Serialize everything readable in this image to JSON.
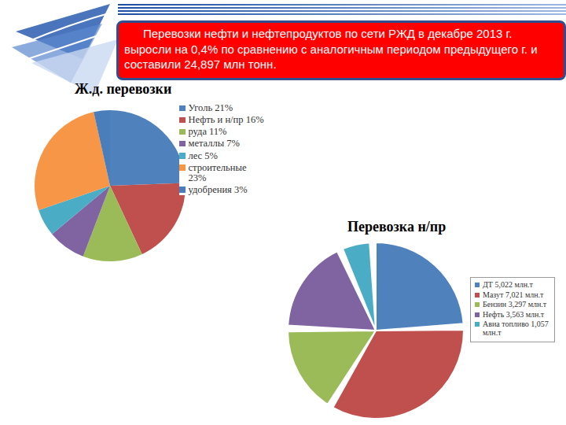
{
  "header": "Перевозки нефти и нефтепродуктов по сети РЖД в декабре 2013 г. выросли на 0,4% по сравнению с аналогичным периодом предыдущего г. и составили 24,897 млн тонн.",
  "chart_data": [
    {
      "type": "pie",
      "title": "Ж.д. перевозки",
      "categories": [
        "Уголь  21%",
        "Нефть и н/пр 16%",
        "руда 11%",
        "металлы 7%",
        "лес 5%",
        "строительные 23%",
        "удобрения 3%"
      ],
      "values": [
        21,
        16,
        11,
        7,
        5,
        23,
        3
      ],
      "colors": [
        "#4f81bd",
        "#c0504d",
        "#9bbb59",
        "#8064a2",
        "#4bacc6",
        "#f79646",
        "#4a7ebb"
      ]
    },
    {
      "type": "pie",
      "title": "Перевозка н/пр",
      "categories": [
        "ДТ 5,022 млн.т",
        "Мазут 7,021 млн.т",
        "Бензин 3,297 млн.т",
        "Нефть 3,563 млн.т",
        "Авиа топливо 1,057 млн.т"
      ],
      "values": [
        5.022,
        7.021,
        3.297,
        3.563,
        1.057
      ],
      "colors": [
        "#4f81bd",
        "#c0504d",
        "#9bbb59",
        "#8064a2",
        "#4bacc6"
      ]
    }
  ]
}
